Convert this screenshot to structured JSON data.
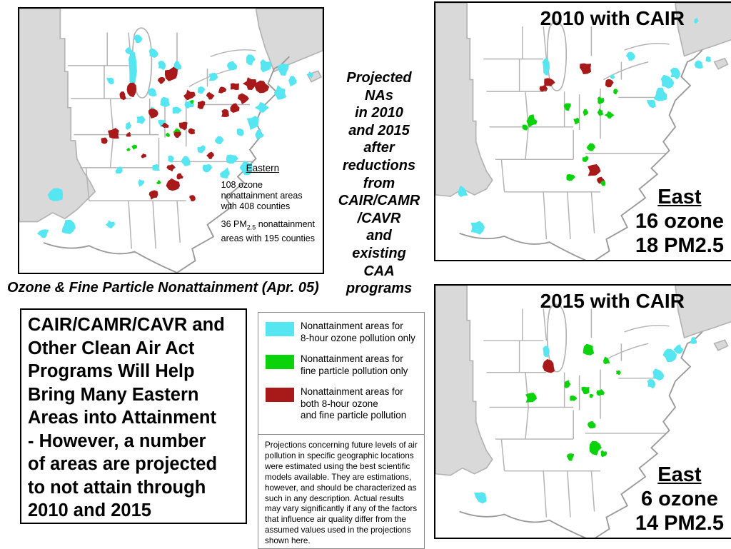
{
  "slide": {
    "caption_left_map": "Ozone & Fine Particle Nonattainment (Apr. 05)",
    "center_note": "Projected\nNAs\nin 2010\nand 2015\nafter\nreductions\nfrom\nCAIR/CAMR\n/CAVR\nand\nexisting\nCAA\nprograms",
    "message_box": "CAIR/CAMR/CAVR and\nOther Clean Air Act\nPrograms Will Help\nBring Many Eastern\nAreas into Attainment\n- However, a number\nof areas are projected\nto not attain through\n2010 and 2015",
    "disclaimer": "Projections concerning future levels of air pollution in specific geographic locations were estimated using the best scientific models available.  They are estimations, however, and should be characterized as such in any description.  Actual results may vary significantly if any of the factors that influence air quality differ from the assumed values used in the projections shown here."
  },
  "colors": {
    "ozone": "#55e6f2",
    "pm": "#0bd30b",
    "both": "#a81a1a",
    "inactive_state": "#d9d9d9",
    "state_border": "#b3b3b3",
    "coast": "#9a9a9a"
  },
  "legend": {
    "items": [
      {
        "key": "ozone",
        "color": "#55e6f2",
        "label": "Nonattainment areas for\n8-hour ozone pollution only"
      },
      {
        "key": "pm",
        "color": "#0bd30b",
        "label": "Nonattainment areas for\nfine particle pollution only"
      },
      {
        "key": "both",
        "color": "#a81a1a",
        "label": "Nonattainment areas for\nboth 8-hour ozone\nand fine particle pollution"
      }
    ]
  },
  "maps": {
    "eastern": {
      "annotation_heading": "Eastern",
      "annotation_p1": "108 ozone\nnonattainment areas\nwith 408 counties",
      "annotation_p2_pre": "36 PM",
      "annotation_p2_sub": "2.5",
      "annotation_p2_post": " nonattainment",
      "annotation_p2_line2": "areas with 195 counties",
      "areas": [
        [
          "o",
          37.5,
          21,
          1.6,
          1,
          4
        ],
        [
          "o",
          39,
          10,
          1.4
        ],
        [
          "o",
          36,
          14,
          1.2
        ],
        [
          "o",
          44,
          15,
          1.6
        ],
        [
          "o",
          47,
          19,
          1.4
        ],
        [
          "o",
          52,
          19,
          1.5
        ],
        [
          "o",
          30,
          24,
          1.3
        ],
        [
          "o",
          44,
          28,
          1.4
        ],
        [
          "o",
          48,
          31,
          1.7
        ],
        [
          "o",
          44,
          34,
          1.3
        ],
        [
          "o",
          40,
          37,
          1.4
        ],
        [
          "o",
          36,
          39,
          1.2
        ],
        [
          "o",
          47,
          38,
          1.3
        ],
        [
          "o",
          52,
          34,
          1.5
        ],
        [
          "o",
          56,
          32,
          1.4
        ],
        [
          "o",
          60,
          27,
          1.4
        ],
        [
          "o",
          64,
          23,
          1.6
        ],
        [
          "o",
          70,
          19,
          1.7
        ],
        [
          "o",
          76,
          17,
          1.7
        ],
        [
          "o",
          81,
          19,
          2.0
        ],
        [
          "o",
          87,
          20,
          2.2
        ],
        [
          "o",
          90,
          24,
          1.8
        ],
        [
          "o",
          86,
          28,
          2.2
        ],
        [
          "o",
          80,
          33,
          2.0
        ],
        [
          "o",
          77,
          38,
          2.2
        ],
        [
          "o",
          79,
          42,
          1.6
        ],
        [
          "o",
          73,
          41,
          1.4
        ],
        [
          "o",
          66,
          44,
          1.5
        ],
        [
          "o",
          60,
          47,
          1.4
        ],
        [
          "o",
          70,
          50,
          2.0
        ],
        [
          "o",
          75,
          53,
          2.2
        ],
        [
          "o",
          68,
          55,
          1.8
        ],
        [
          "o",
          62,
          53,
          1.5
        ],
        [
          "o",
          55,
          51,
          1.6
        ],
        [
          "o",
          50,
          50,
          1.4
        ],
        [
          "o",
          45,
          53,
          1.4
        ],
        [
          "o",
          33,
          54,
          1.5
        ],
        [
          "o",
          40,
          58,
          1.2
        ],
        [
          "o",
          12,
          62,
          2.4
        ],
        [
          "o",
          8,
          75,
          1.8
        ],
        [
          "o",
          16,
          73,
          2.3
        ],
        [
          "o",
          30,
          72,
          1.4
        ],
        [
          "o",
          96,
          22,
          1.0
        ],
        [
          "g",
          52,
          41,
          1.1
        ],
        [
          "g",
          49,
          42,
          0.7
        ],
        [
          "g",
          38,
          46,
          0.9
        ],
        [
          "g",
          36,
          47,
          0.6
        ],
        [
          "g",
          46,
          58,
          0.8
        ],
        [
          "g",
          51,
          59,
          0.6
        ],
        [
          "g",
          57,
          31,
          0.7
        ],
        [
          "r",
          50,
          22,
          2.3
        ],
        [
          "r",
          47,
          24,
          1.2
        ],
        [
          "r",
          37,
          27,
          2.0,
          1,
          1.3
        ],
        [
          "r",
          34,
          29,
          1.3
        ],
        [
          "r",
          56,
          29,
          1.8
        ],
        [
          "r",
          60,
          32,
          1.5
        ],
        [
          "r",
          63,
          29,
          1.2
        ],
        [
          "r",
          67,
          27,
          1.4
        ],
        [
          "r",
          71,
          26,
          1.5
        ],
        [
          "r",
          76,
          25,
          2.0
        ],
        [
          "r",
          80,
          26,
          2.2
        ],
        [
          "r",
          74,
          30,
          1.8
        ],
        [
          "r",
          71,
          33,
          1.6
        ],
        [
          "r",
          68,
          35,
          1.4
        ],
        [
          "r",
          44,
          35,
          1.6
        ],
        [
          "r",
          48,
          39,
          1.1
        ],
        [
          "r",
          54,
          39,
          1.5
        ],
        [
          "r",
          52,
          42,
          1.4
        ],
        [
          "r",
          57,
          41,
          1.2
        ],
        [
          "r",
          31,
          42,
          2.0
        ],
        [
          "r",
          28,
          44,
          1.1
        ],
        [
          "r",
          36,
          42,
          0.9
        ],
        [
          "r",
          63,
          49,
          1.3
        ],
        [
          "r",
          50,
          53,
          1.3
        ],
        [
          "r",
          53,
          56,
          1.0
        ],
        [
          "r",
          51,
          59,
          2.3
        ],
        [
          "r",
          44,
          62,
          1.6
        ],
        [
          "r",
          57,
          63,
          1.1
        ],
        [
          "r",
          41,
          49,
          0.8
        ]
      ]
    },
    "cair2010": {
      "title": "2010 with CAIR",
      "label_heading": "East",
      "label_lines": "16 ozone\n18 PM2.5",
      "areas": [
        [
          "o",
          37,
          22,
          1.4,
          1,
          2.2
        ],
        [
          "o",
          65,
          18,
          1.5
        ],
        [
          "o",
          59,
          25,
          0.8
        ],
        [
          "o",
          77,
          27,
          2.3
        ],
        [
          "o",
          80,
          24,
          1.8
        ],
        [
          "o",
          75,
          31,
          2.3
        ],
        [
          "o",
          72,
          34,
          1.6
        ],
        [
          "o",
          88,
          21,
          1.4
        ],
        [
          "o",
          91,
          19,
          1.0
        ],
        [
          "o",
          9,
          64,
          2.0
        ],
        [
          "o",
          14,
          76,
          2.3
        ],
        [
          "o",
          87,
          6,
          0.9
        ],
        [
          "r",
          50,
          22,
          2.0
        ],
        [
          "r",
          38,
          27,
          1.8
        ],
        [
          "r",
          36,
          29,
          1.2
        ],
        [
          "r",
          58,
          27,
          1.6
        ],
        [
          "r",
          53,
          57,
          2.3
        ],
        [
          "r",
          55,
          60,
          1.3
        ],
        [
          "g",
          60,
          30,
          0.9
        ],
        [
          "g",
          55,
          33,
          1.2
        ],
        [
          "g",
          44,
          35,
          1.4
        ],
        [
          "g",
          50,
          37,
          1.2
        ],
        [
          "g",
          55,
          37,
          1.1
        ],
        [
          "g",
          58,
          38,
          1.4
        ],
        [
          "g",
          47,
          40,
          1.1
        ],
        [
          "g",
          32,
          40,
          2.0
        ],
        [
          "g",
          30,
          42,
          1.1
        ],
        [
          "g",
          52,
          49,
          1.5
        ],
        [
          "g",
          50,
          53,
          1.1
        ],
        [
          "g",
          45,
          59,
          1.5
        ],
        [
          "g",
          56,
          61,
          0.9
        ]
      ]
    },
    "cair2015": {
      "title": "2015 with CAIR",
      "label_heading": "East",
      "label_lines": "6 ozone\n14 PM2.5",
      "areas": [
        [
          "o",
          37,
          23,
          1.3,
          1,
          1.6
        ],
        [
          "o",
          78,
          24,
          2.3
        ],
        [
          "o",
          81,
          22,
          1.6
        ],
        [
          "o",
          74,
          31,
          2.0
        ],
        [
          "o",
          72,
          34,
          1.5
        ],
        [
          "o",
          86,
          19,
          1.2
        ],
        [
          "o",
          15,
          73,
          2.2
        ],
        [
          "r",
          38,
          28,
          1.8,
          1.1,
          1.3
        ],
        [
          "g",
          51,
          22,
          2.0
        ],
        [
          "g",
          57,
          26,
          1.4
        ],
        [
          "g",
          61,
          30,
          0.8
        ],
        [
          "g",
          44,
          34,
          1.3
        ],
        [
          "g",
          50,
          36,
          1.4
        ],
        [
          "g",
          46,
          39,
          1.2
        ],
        [
          "g",
          55,
          37,
          1.2
        ],
        [
          "g",
          52,
          38,
          0.8
        ],
        [
          "g",
          32,
          39,
          2.0
        ],
        [
          "g",
          52,
          48,
          1.4
        ],
        [
          "g",
          53,
          56,
          2.3
        ],
        [
          "g",
          56,
          58,
          1.1
        ],
        [
          "g",
          45,
          59,
          1.4
        ]
      ]
    }
  },
  "chart_data": {
    "type": "map",
    "title": "Ozone & Fine Particle Nonattainment (Apr. 05) and projected NAs in 2010 and 2015 after reductions from CAIR/CAMR/CAVR and existing CAA programs",
    "legend": [
      "Nonattainment areas for 8-hour ozone pollution only",
      "Nonattainment areas for fine particle pollution only",
      "Nonattainment areas for both 8-hour ozone and fine particle pollution"
    ],
    "series": [
      {
        "name": "Eastern (Apr. 05)",
        "ozone_nonattainment_areas": 108,
        "ozone_counties": 408,
        "pm25_nonattainment_areas": 36,
        "pm25_counties": 195
      },
      {
        "name": "East — 2010 with CAIR",
        "ozone_nonattainment_areas": 16,
        "pm25_nonattainment_areas": 18
      },
      {
        "name": "East — 2015 with CAIR",
        "ozone_nonattainment_areas": 6,
        "pm25_nonattainment_areas": 14
      }
    ]
  }
}
